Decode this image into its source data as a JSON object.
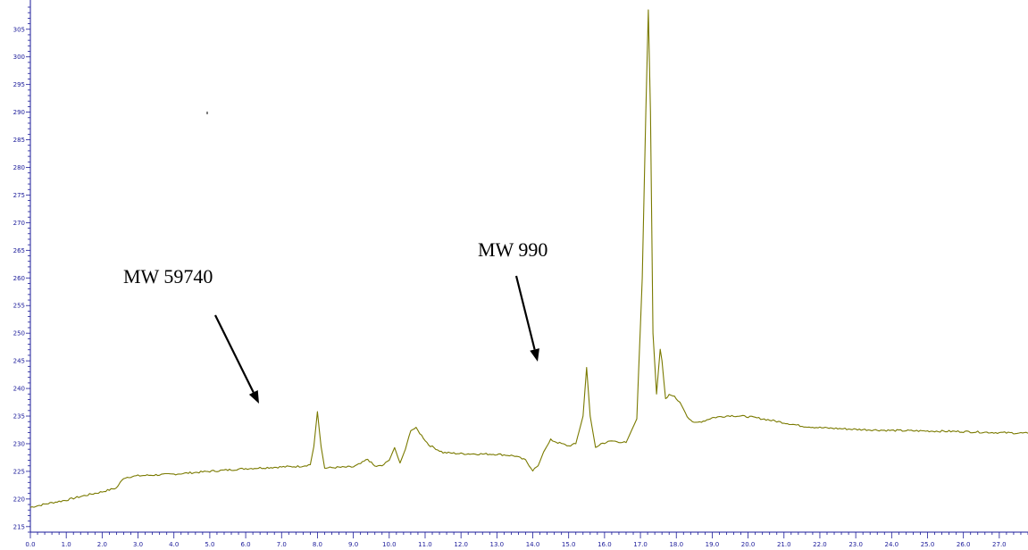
{
  "chart_data": {
    "type": "line",
    "title": "",
    "xlabel": "",
    "ylabel": "",
    "xlim": [
      0.0,
      27.8
    ],
    "ylim": [
      214,
      309
    ],
    "grid": false,
    "line_color": "#7a7a00",
    "axis_color": "#1a1a99",
    "x_ticks": [
      "0.0",
      "1.0",
      "2.0",
      "3.0",
      "4.0",
      "5.0",
      "6.0",
      "7.0",
      "8.0",
      "9.0",
      "10.0",
      "11.0",
      "12.0",
      "13.0",
      "14.0",
      "15.0",
      "16.0",
      "17.0",
      "18.0",
      "19.0",
      "20.0",
      "21.0",
      "22.0",
      "23.0",
      "24.0",
      "25.0",
      "26.0",
      "27.0"
    ],
    "y_ticks": [
      "215",
      "220",
      "225",
      "230",
      "235",
      "240",
      "245",
      "250",
      "255",
      "260",
      "265",
      "270",
      "275",
      "280",
      "285",
      "290",
      "295",
      "300",
      "305"
    ],
    "series": [
      {
        "x": [
          0.0,
          0.5,
          1.0,
          1.5,
          2.0,
          2.4,
          2.6,
          2.75,
          3.0,
          4.0,
          5.0,
          6.0,
          7.0,
          7.5,
          7.8,
          7.9,
          8.0,
          8.1,
          8.2,
          8.5,
          9.0,
          9.2,
          9.4,
          9.6,
          9.8,
          10.0,
          10.15,
          10.3,
          10.45,
          10.6,
          10.75,
          10.9,
          11.1,
          11.5,
          12.0,
          13.0,
          13.5,
          13.8,
          14.0,
          14.15,
          14.3,
          14.5,
          14.7,
          15.0,
          15.2,
          15.4,
          15.5,
          15.6,
          15.75,
          15.9,
          16.2,
          16.6,
          16.9,
          17.05,
          17.15,
          17.22,
          17.28,
          17.35,
          17.45,
          17.55,
          17.6,
          17.7,
          17.8,
          17.9,
          18.1,
          18.3,
          18.5,
          18.8,
          19.0,
          19.5,
          20.0,
          20.5,
          21.0,
          21.5,
          22.0,
          23.0,
          24.0,
          25.0,
          26.0,
          27.0,
          27.8
        ],
        "y": [
          218.5,
          219.2,
          219.8,
          220.6,
          221.3,
          222.0,
          223.8,
          224.0,
          224.2,
          224.5,
          225.0,
          225.5,
          225.8,
          225.9,
          226.2,
          229.5,
          235.8,
          229.5,
          225.6,
          225.7,
          225.8,
          226.4,
          227.2,
          225.9,
          226.0,
          227.0,
          229.3,
          226.5,
          229.0,
          232.5,
          232.8,
          231.5,
          229.8,
          228.4,
          228.2,
          228.1,
          227.8,
          227.0,
          225.2,
          226.0,
          228.5,
          230.7,
          230.2,
          229.6,
          230.0,
          235.0,
          243.8,
          235.0,
          229.3,
          230.0,
          230.5,
          230.2,
          234.5,
          260.0,
          290.0,
          308.5,
          290.0,
          250.0,
          239.0,
          247.0,
          245.0,
          238.0,
          238.8,
          238.8,
          237.5,
          235.0,
          233.7,
          234.2,
          234.7,
          235.1,
          234.9,
          234.4,
          233.8,
          233.2,
          232.9,
          232.6,
          232.4,
          232.3,
          232.2,
          232.0,
          231.9
        ]
      }
    ],
    "annotations": [
      {
        "text": "MW 59740"
      },
      {
        "text": "MW 990"
      }
    ]
  }
}
